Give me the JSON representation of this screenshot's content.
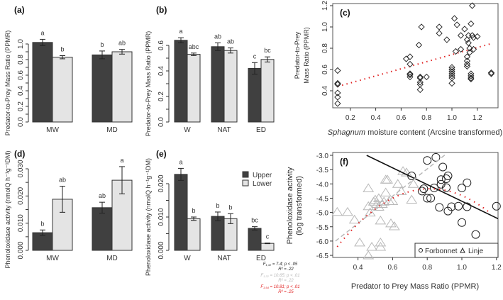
{
  "colors": {
    "upper": "#404040",
    "lower": "#e4e4e4",
    "red": "#e02020",
    "gray": "#b8b8b8"
  },
  "legend": {
    "upper": "Upper",
    "lower": "Lower"
  },
  "chart_data": [
    {
      "id": "a",
      "panel": "(a)",
      "type": "bar",
      "ylabel": "Predator-to-Prey Mass Ratio (PPMR)",
      "ylim": [
        0,
        1.0
      ],
      "yticks": [
        "0.0",
        "0.2",
        "0.4",
        "0.6",
        "0.8",
        "1.0"
      ],
      "ytickvals": [
        0,
        0.2,
        0.4,
        0.6,
        0.8,
        1.0
      ],
      "categories": [
        "MW",
        "MD"
      ],
      "series": [
        {
          "name": "Upper",
          "values": [
            1.02,
            0.86
          ],
          "errors": [
            0.04,
            0.05
          ],
          "letters": [
            "a",
            "b"
          ]
        },
        {
          "name": "Lower",
          "values": [
            0.83,
            0.9
          ],
          "errors": [
            0.02,
            0.03
          ],
          "letters": [
            "b",
            "ab"
          ]
        }
      ]
    },
    {
      "id": "b",
      "panel": "(b)",
      "type": "bar",
      "ylabel": "Predator-to-Prey Mass Ratio (PPMR)",
      "ylim": [
        0,
        0.6
      ],
      "yticks": [
        "0.0",
        "0.2",
        "0.4",
        "0.6"
      ],
      "ytickvals": [
        0,
        0.2,
        0.4,
        0.6
      ],
      "categories": [
        "W",
        "NAT",
        "ED"
      ],
      "series": [
        {
          "name": "Upper",
          "values": [
            0.64,
            0.59,
            0.42
          ],
          "errors": [
            0.02,
            0.03,
            0.045
          ],
          "letters": [
            "a",
            "ab",
            "c"
          ]
        },
        {
          "name": "Lower",
          "values": [
            0.53,
            0.56,
            0.49
          ],
          "errors": [
            0.01,
            0.02,
            0.02
          ],
          "letters": [
            "abc",
            "ab",
            "bc"
          ]
        }
      ]
    },
    {
      "id": "c",
      "panel": "(c)",
      "type": "scatter",
      "xlabel_italic": "Sphagnum",
      "xlabel": " moisture content (Arcsine transformed)",
      "ylabel1": "Predator-to-Prey",
      "ylabel2": "Mass Ratio (PPMR)",
      "xticks": [
        "0.2",
        "0.4",
        "0.6",
        "0.8",
        "1.0",
        "1.2"
      ],
      "xtickvals": [
        0.2,
        0.4,
        0.6,
        0.8,
        1.0,
        1.2
      ],
      "yticks": [
        "0.4",
        "0.6",
        "0.8",
        "1.0",
        "1.2"
      ],
      "ytickvals": [
        0.4,
        0.6,
        0.8,
        1.0,
        1.2
      ],
      "points": [
        [
          0.1,
          0.59
        ],
        [
          0.1,
          0.47
        ],
        [
          0.1,
          0.46
        ],
        [
          0.1,
          0.38
        ],
        [
          0.1,
          0.34
        ],
        [
          0.1,
          0.28
        ],
        [
          0.64,
          0.7
        ],
        [
          0.67,
          0.72
        ],
        [
          0.67,
          0.65
        ],
        [
          0.67,
          0.56
        ],
        [
          0.67,
          0.55
        ],
        [
          0.67,
          0.53
        ],
        [
          0.74,
          0.83
        ],
        [
          0.76,
          1.0
        ],
        [
          0.75,
          0.53
        ],
        [
          0.75,
          0.52
        ],
        [
          0.75,
          0.48
        ],
        [
          0.75,
          0.46
        ],
        [
          0.75,
          0.41
        ],
        [
          0.8,
          0.53
        ],
        [
          0.9,
          1.0
        ],
        [
          0.9,
          0.94
        ],
        [
          0.96,
          0.88
        ],
        [
          1.0,
          0.62
        ],
        [
          1.0,
          0.6
        ],
        [
          1.0,
          0.58
        ],
        [
          1.0,
          0.56
        ],
        [
          1.0,
          0.54
        ],
        [
          1.0,
          0.52
        ],
        [
          1.0,
          0.47
        ],
        [
          1.02,
          1.08
        ],
        [
          1.04,
          1.02
        ],
        [
          1.03,
          0.77
        ],
        [
          1.07,
          0.92
        ],
        [
          1.07,
          0.79
        ],
        [
          1.1,
          0.98
        ],
        [
          1.12,
          0.88
        ],
        [
          1.12,
          0.72
        ],
        [
          1.12,
          0.68
        ],
        [
          1.12,
          0.65
        ],
        [
          1.12,
          0.63
        ],
        [
          1.13,
          0.92
        ],
        [
          1.13,
          0.85
        ],
        [
          1.14,
          0.8
        ],
        [
          1.14,
          0.76
        ],
        [
          1.15,
          1.03
        ],
        [
          1.15,
          0.56
        ],
        [
          1.15,
          0.54
        ],
        [
          1.15,
          0.52
        ],
        [
          1.15,
          0.51
        ],
        [
          1.16,
          1.2
        ],
        [
          1.16,
          0.92
        ],
        [
          1.17,
          0.9
        ],
        [
          1.17,
          0.79
        ],
        [
          1.2,
          0.91
        ],
        [
          1.31,
          0.57
        ],
        [
          1.31,
          0.56
        ]
      ],
      "fit": [
        [
          0.1,
          0.44
        ],
        [
          1.3,
          0.84
        ]
      ]
    },
    {
      "id": "d",
      "panel": "(d)",
      "type": "bar",
      "ylabel": "Phenoloxidase activity (nmolQ h⁻¹g⁻¹DM)",
      "ylim": [
        0,
        0.03
      ],
      "yticks": [
        "0.000",
        "0.010",
        "0.020",
        "0.030"
      ],
      "ytickvals": [
        0,
        0.01,
        0.02,
        0.03
      ],
      "categories": [
        "MW",
        "MD"
      ],
      "series": [
        {
          "name": "Upper",
          "values": [
            0.0065,
            0.0157
          ],
          "errors": [
            0.001,
            0.002
          ],
          "letters": [
            "b",
            "ab"
          ]
        },
        {
          "name": "Lower",
          "values": [
            0.0188,
            0.0258
          ],
          "errors": [
            0.0048,
            0.005
          ],
          "letters": [
            "ab",
            "a"
          ]
        }
      ]
    },
    {
      "id": "e",
      "panel": "(e)",
      "type": "bar",
      "ylabel": "Phenoloxidase activity (nmolQ h⁻¹g⁻¹DM)",
      "ylim": [
        0,
        0.02
      ],
      "yticks": [
        "0.000",
        "0.010",
        "0.020"
      ],
      "ytickvals": [
        0,
        0.01,
        0.02
      ],
      "categories": [
        "W",
        "NAT",
        "ED"
      ],
      "series": [
        {
          "name": "Upper",
          "values": [
            0.0228,
            0.0102,
            0.0066
          ],
          "errors": [
            0.0018,
            0.0013,
            0.0005
          ],
          "letters": [
            "a",
            "b",
            "bc"
          ]
        },
        {
          "name": "Lower",
          "values": [
            0.0095,
            0.0095,
            0.0021
          ],
          "errors": [
            0.0005,
            0.0015,
            0.0001
          ],
          "letters": [
            "b",
            "b",
            "c"
          ]
        }
      ]
    },
    {
      "id": "f",
      "panel": "(f)",
      "type": "scatter",
      "xlabel": "Predator to Prey Mass Ratio (PPMR)",
      "ylabel1": "Phenoloxidase activity",
      "ylabel2": "(log transformed)",
      "xticks": [
        "0.4",
        "0.6",
        "0.8",
        "1.0",
        "1.2"
      ],
      "xtickvals": [
        0.4,
        0.6,
        0.8,
        1.0,
        1.2
      ],
      "yticks": [
        "-3.0",
        "-3.5",
        "-4.0",
        "-4.5",
        "-5.0",
        "-5.5",
        "-6.0",
        "-6.5"
      ],
      "ytickvals": [
        -3,
        -3.5,
        -4,
        -4.5,
        -5,
        -5.5,
        -6,
        -6.5
      ],
      "legend": [
        "Forbonnet",
        "Linje"
      ],
      "forbonnet": [
        [
          0.71,
          -3.72
        ],
        [
          0.77,
          -4.25
        ],
        [
          0.78,
          -4.17
        ],
        [
          0.8,
          -3.18
        ],
        [
          0.8,
          -4.5
        ],
        [
          0.82,
          -4.5
        ],
        [
          0.85,
          -3.07
        ],
        [
          0.84,
          -4.14
        ],
        [
          0.87,
          -4.82
        ],
        [
          0.88,
          -3.85
        ],
        [
          0.88,
          -4.01
        ],
        [
          0.89,
          -3.41
        ],
        [
          0.91,
          -4.13
        ],
        [
          0.91,
          -3.82
        ],
        [
          0.92,
          -3.72
        ],
        [
          0.92,
          -4.95
        ],
        [
          0.94,
          -4.8
        ],
        [
          0.98,
          -4.78
        ],
        [
          1.0,
          -4.14
        ],
        [
          1.0,
          -5.35
        ],
        [
          1.03,
          -3.96
        ],
        [
          1.03,
          -4.8
        ],
        [
          1.08,
          -5.77
        ],
        [
          1.2,
          -4.78
        ]
      ],
      "linje": [
        [
          0.28,
          -4.98
        ],
        [
          0.34,
          -4.98
        ],
        [
          0.38,
          -5.25
        ],
        [
          0.41,
          -6.05
        ],
        [
          0.46,
          -4.15
        ],
        [
          0.46,
          -6.5
        ],
        [
          0.46,
          -4.78
        ],
        [
          0.47,
          -5.0
        ],
        [
          0.48,
          -6.2
        ],
        [
          0.49,
          -4.62
        ],
        [
          0.5,
          -4.55
        ],
        [
          0.51,
          -4.7
        ],
        [
          0.52,
          -4.5
        ],
        [
          0.52,
          -4.8
        ],
        [
          0.53,
          -5.28
        ],
        [
          0.53,
          -6.05
        ],
        [
          0.53,
          -6.2
        ],
        [
          0.54,
          -4.7
        ],
        [
          0.55,
          -4.62
        ],
        [
          0.56,
          -3.85
        ],
        [
          0.56,
          -4.3
        ],
        [
          0.57,
          -3.85
        ],
        [
          0.58,
          -4.6
        ],
        [
          0.59,
          -5.38
        ],
        [
          0.6,
          -4.6
        ],
        [
          0.61,
          -5.48
        ],
        [
          0.63,
          -4.0
        ],
        [
          0.65,
          -4.25
        ],
        [
          0.66,
          -3.55
        ],
        [
          0.68,
          -3.6
        ],
        [
          0.71,
          -4.55
        ],
        [
          0.72,
          -4.0
        ]
      ],
      "fit_forbonnet": [
        [
          0.45,
          -3.0
        ],
        [
          1.22,
          -5.25
        ]
      ],
      "fit_linje": [
        [
          0.27,
          -6.0
        ],
        [
          0.91,
          -2.95
        ]
      ],
      "fit_combined_quadratic": [
        [
          0.28,
          -6.2
        ],
        [
          0.75,
          -4.2
        ],
        [
          1.17,
          -5.05
        ]
      ],
      "stats": [
        {
          "f": "F",
          "sub": "1,32",
          "text": " = 7.4; p < .05",
          "r2": "R² = .22",
          "color": "black"
        },
        {
          "f": "F",
          "sub": "1,32",
          "text": " = 10.65; p < .01",
          "r2": "R² = .22",
          "color": "gray"
        },
        {
          "f": "F",
          "sub": "3,54",
          "text": " = 10.81; p < .01",
          "r2": "R² = .25",
          "color": "red"
        }
      ]
    }
  ]
}
